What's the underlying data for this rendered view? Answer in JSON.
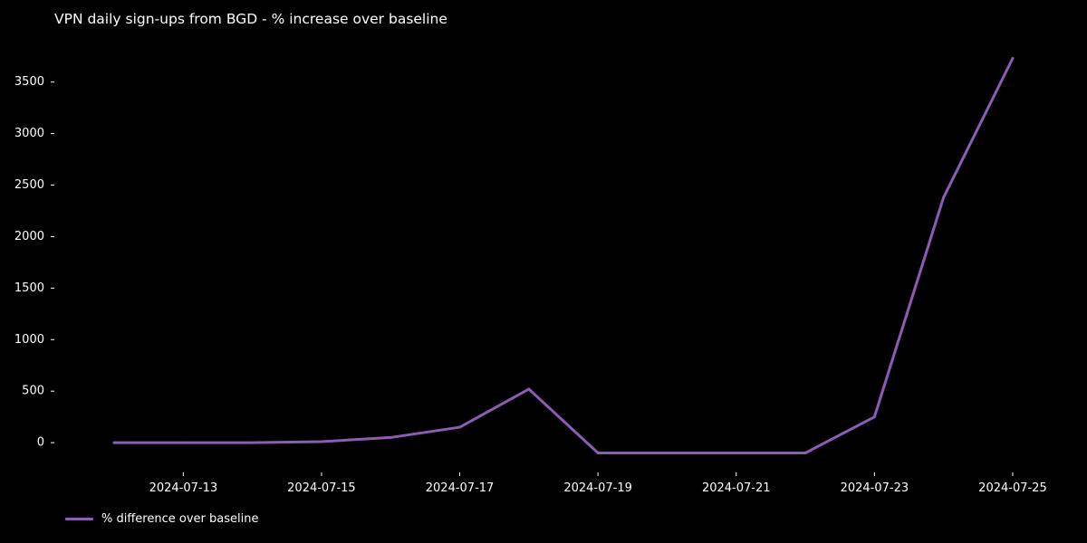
{
  "chart_data": {
    "type": "line",
    "title": "VPN daily sign-ups from BGD - % increase over baseline",
    "xlabel": "",
    "ylabel": "",
    "x": [
      "2024-07-12",
      "2024-07-13",
      "2024-07-14",
      "2024-07-15",
      "2024-07-16",
      "2024-07-17",
      "2024-07-18",
      "2024-07-19",
      "2024-07-20",
      "2024-07-21",
      "2024-07-22",
      "2024-07-23",
      "2024-07-24",
      "2024-07-25"
    ],
    "series": [
      {
        "name": "% difference over baseline",
        "color": "#8e5bb5",
        "values": [
          0,
          0,
          0,
          10,
          50,
          150,
          520,
          -100,
          -100,
          -100,
          -100,
          250,
          2380,
          3730
        ]
      }
    ],
    "x_ticks": [
      "2024-07-13",
      "2024-07-15",
      "2024-07-17",
      "2024-07-19",
      "2024-07-21",
      "2024-07-23",
      "2024-07-25"
    ],
    "y_ticks": [
      0,
      500,
      1000,
      1500,
      2000,
      2500,
      3000,
      3500
    ],
    "xlim": [
      "2024-07-11T07:00",
      "2024-07-25T17:00"
    ],
    "ylim": [
      -280,
      3910
    ],
    "grid": false,
    "legend_position": "bottom-left",
    "background": "#000000",
    "text_color": "#ffffff"
  }
}
